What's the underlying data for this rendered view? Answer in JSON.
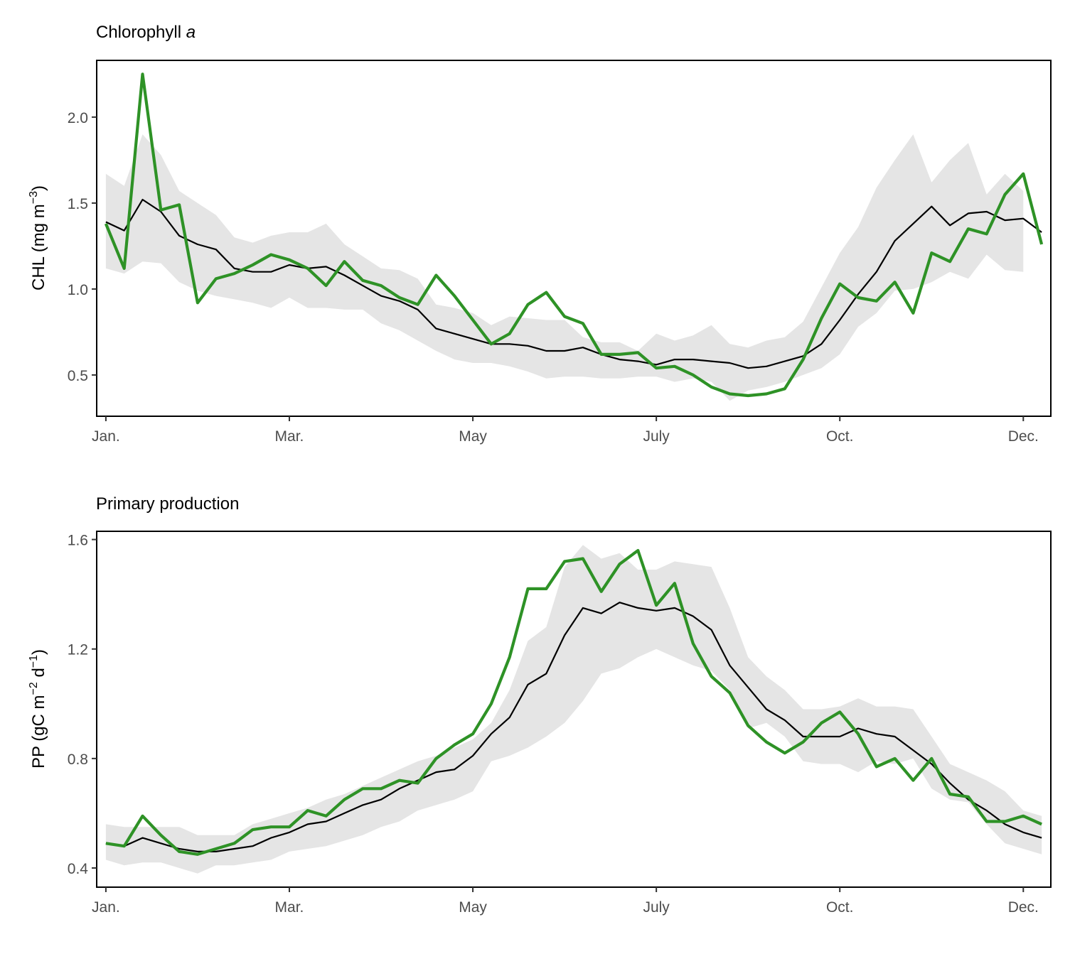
{
  "chart_data": [
    {
      "type": "line",
      "title": "Chlorophyll ",
      "title_italic": "a",
      "ylabel": "CHL (mg m",
      "ylabel_sup": "−3",
      "ylabel_end": ")",
      "xlabel": "",
      "x_ticks": [
        "Jan.",
        "Mar.",
        "May",
        "July",
        "Oct.",
        "Dec."
      ],
      "x_tick_positions": [
        0,
        10,
        20,
        30,
        40,
        50
      ],
      "xlim": [
        -0.5,
        51.5
      ],
      "y_ticks": [
        "0.5",
        "1.0",
        "1.5",
        "2.0"
      ],
      "y_tick_values": [
        0.5,
        1.0,
        1.5,
        2.0
      ],
      "ylim": [
        0.26,
        2.33
      ],
      "grid": false,
      "colors": {
        "observed": "#2e9226",
        "climatology": "#000000",
        "band": "#e5e5e5"
      },
      "x": [
        0,
        1,
        2,
        3,
        4,
        5,
        6,
        7,
        8,
        9,
        10,
        11,
        12,
        13,
        14,
        15,
        16,
        17,
        18,
        19,
        20,
        21,
        22,
        23,
        24,
        25,
        26,
        27,
        28,
        29,
        30,
        31,
        32,
        33,
        34,
        35,
        36,
        37,
        38,
        39,
        40,
        41,
        42,
        43,
        44,
        45,
        46,
        47,
        48,
        49,
        50,
        51
      ],
      "series": [
        {
          "role": "band_upper",
          "values": [
            1.67,
            1.6,
            1.9,
            1.78,
            1.57,
            1.5,
            1.43,
            1.3,
            1.27,
            1.31,
            1.33,
            1.33,
            1.38,
            1.26,
            1.19,
            1.12,
            1.11,
            1.06,
            0.91,
            0.89,
            0.86,
            0.79,
            0.84,
            0.83,
            0.82,
            0.82,
            0.72,
            0.69,
            0.69,
            0.64,
            0.74,
            0.7,
            0.73,
            0.79,
            0.68,
            0.66,
            0.7,
            0.72,
            0.81,
            1.01,
            1.21,
            1.36,
            1.59,
            1.75,
            1.9,
            1.62,
            1.75,
            1.85,
            1.55,
            1.67,
            1.57,
            null
          ]
        },
        {
          "role": "band_lower",
          "values": [
            1.12,
            1.09,
            1.16,
            1.15,
            1.04,
            0.99,
            0.96,
            0.94,
            0.92,
            0.89,
            0.95,
            0.89,
            0.89,
            0.88,
            0.88,
            0.8,
            0.76,
            0.7,
            0.64,
            0.59,
            0.57,
            0.57,
            0.55,
            0.52,
            0.48,
            0.49,
            0.49,
            0.48,
            0.48,
            0.49,
            0.49,
            0.46,
            0.48,
            0.46,
            0.35,
            0.41,
            0.43,
            0.46,
            0.5,
            0.54,
            0.62,
            0.78,
            0.86,
            0.99,
            1.0,
            1.04,
            1.1,
            1.06,
            1.2,
            1.11,
            1.1,
            null
          ]
        },
        {
          "role": "climatology",
          "values": [
            1.39,
            1.34,
            1.52,
            1.45,
            1.31,
            1.26,
            1.23,
            1.12,
            1.1,
            1.1,
            1.14,
            1.12,
            1.13,
            1.08,
            1.02,
            0.96,
            0.93,
            0.88,
            0.77,
            0.74,
            0.71,
            0.68,
            0.68,
            0.67,
            0.64,
            0.64,
            0.66,
            0.62,
            0.59,
            0.58,
            0.56,
            0.59,
            0.59,
            0.58,
            0.57,
            0.54,
            0.55,
            0.58,
            0.61,
            0.68,
            0.82,
            0.97,
            1.1,
            1.28,
            1.38,
            1.48,
            1.37,
            1.44,
            1.45,
            1.4,
            1.41,
            1.33
          ]
        },
        {
          "role": "observed",
          "values": [
            1.38,
            1.12,
            2.25,
            1.46,
            1.49,
            0.92,
            1.06,
            1.09,
            1.14,
            1.2,
            1.17,
            1.12,
            1.02,
            1.16,
            1.05,
            1.02,
            0.95,
            0.91,
            1.08,
            0.96,
            0.82,
            0.68,
            0.74,
            0.91,
            0.98,
            0.84,
            0.8,
            0.62,
            0.62,
            0.63,
            0.54,
            0.55,
            0.5,
            0.43,
            0.39,
            0.38,
            0.39,
            0.42,
            0.59,
            0.83,
            1.03,
            0.95,
            0.93,
            1.04,
            0.86,
            1.21,
            1.16,
            1.35,
            1.32,
            1.55,
            1.67,
            1.26
          ]
        }
      ]
    },
    {
      "type": "line",
      "title": "Primary production",
      "ylabel": "PP (gC m",
      "ylabel_sup": "−2",
      "ylabel_mid": " d",
      "ylabel_sup2": "−1",
      "ylabel_end": ")",
      "xlabel": "",
      "x_ticks": [
        "Jan.",
        "Mar.",
        "May",
        "July",
        "Oct.",
        "Dec."
      ],
      "x_tick_positions": [
        0,
        10,
        20,
        30,
        40,
        50
      ],
      "xlim": [
        -0.5,
        51.5
      ],
      "y_ticks": [
        "0.4",
        "0.8",
        "1.2",
        "1.6"
      ],
      "y_tick_values": [
        0.4,
        0.8,
        1.2,
        1.6
      ],
      "ylim": [
        0.33,
        1.63
      ],
      "grid": false,
      "colors": {
        "observed": "#2e9226",
        "climatology": "#000000",
        "band": "#e5e5e5"
      },
      "x": [
        0,
        1,
        2,
        3,
        4,
        5,
        6,
        7,
        8,
        9,
        10,
        11,
        12,
        13,
        14,
        15,
        16,
        17,
        18,
        19,
        20,
        21,
        22,
        23,
        24,
        25,
        26,
        27,
        28,
        29,
        30,
        31,
        32,
        33,
        34,
        35,
        36,
        37,
        38,
        39,
        40,
        41,
        42,
        43,
        44,
        45,
        46,
        47,
        48,
        49,
        50,
        51
      ],
      "series": [
        {
          "role": "band_upper",
          "values": [
            0.56,
            0.55,
            0.55,
            0.55,
            0.55,
            0.52,
            0.52,
            0.52,
            0.56,
            0.58,
            0.6,
            0.62,
            0.65,
            0.67,
            0.7,
            0.73,
            0.76,
            0.79,
            0.81,
            0.84,
            0.87,
            0.93,
            1.05,
            1.23,
            1.28,
            1.5,
            1.58,
            1.53,
            1.55,
            1.49,
            1.49,
            1.52,
            1.51,
            1.5,
            1.35,
            1.17,
            1.1,
            1.05,
            0.98,
            0.98,
            0.99,
            1.02,
            0.99,
            0.99,
            0.98,
            0.88,
            0.78,
            0.75,
            0.72,
            0.68,
            0.61,
            0.59
          ]
        },
        {
          "role": "band_lower",
          "values": [
            0.43,
            0.41,
            0.42,
            0.42,
            0.4,
            0.38,
            0.41,
            0.41,
            0.42,
            0.43,
            0.46,
            0.47,
            0.48,
            0.5,
            0.52,
            0.55,
            0.57,
            0.61,
            0.63,
            0.65,
            0.68,
            0.79,
            0.81,
            0.84,
            0.88,
            0.93,
            1.01,
            1.11,
            1.13,
            1.17,
            1.2,
            1.17,
            1.14,
            1.12,
            1.05,
            0.91,
            0.93,
            0.88,
            0.79,
            0.78,
            0.78,
            0.75,
            0.79,
            0.78,
            0.8,
            0.69,
            0.65,
            0.64,
            0.56,
            0.49,
            0.47,
            0.45
          ]
        },
        {
          "role": "climatology",
          "values": [
            0.49,
            0.48,
            0.51,
            0.49,
            0.47,
            0.46,
            0.46,
            0.47,
            0.48,
            0.51,
            0.53,
            0.56,
            0.57,
            0.6,
            0.63,
            0.65,
            0.69,
            0.72,
            0.75,
            0.76,
            0.81,
            0.89,
            0.95,
            1.07,
            1.11,
            1.25,
            1.35,
            1.33,
            1.37,
            1.35,
            1.34,
            1.35,
            1.32,
            1.27,
            1.14,
            1.06,
            0.98,
            0.94,
            0.88,
            0.88,
            0.88,
            0.91,
            0.89,
            0.88,
            0.83,
            0.78,
            0.71,
            0.65,
            0.61,
            0.56,
            0.53,
            0.51
          ]
        },
        {
          "role": "observed",
          "values": [
            0.49,
            0.48,
            0.59,
            0.52,
            0.46,
            0.45,
            0.47,
            0.49,
            0.54,
            0.55,
            0.55,
            0.61,
            0.59,
            0.65,
            0.69,
            0.69,
            0.72,
            0.71,
            0.8,
            0.85,
            0.89,
            1.0,
            1.17,
            1.42,
            1.42,
            1.52,
            1.53,
            1.41,
            1.51,
            1.56,
            1.36,
            1.44,
            1.22,
            1.1,
            1.04,
            0.92,
            0.86,
            0.82,
            0.86,
            0.93,
            0.97,
            0.89,
            0.77,
            0.8,
            0.72,
            0.8,
            0.67,
            0.66,
            0.57,
            0.57,
            0.59,
            0.56
          ]
        }
      ]
    }
  ]
}
